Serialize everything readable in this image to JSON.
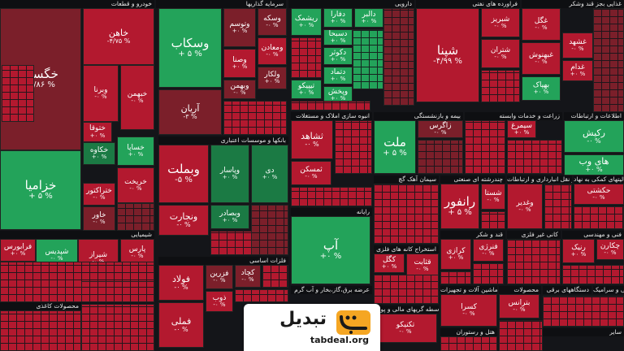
{
  "colors": {
    "green_dark": "#1b7a44",
    "green": "#23a35a",
    "green_light": "#2fbf6c",
    "red_dark": "#7b1f2a",
    "red": "#b3192f",
    "red_light": "#e02a3c",
    "grey": "#5a5a5a"
  },
  "sectors": [
    {
      "label": "خودرو و قطعات"
    },
    {
      "label": "سرمایه گذاریها"
    },
    {
      "label": "دارویی"
    },
    {
      "label": "فراورده های نفتی"
    },
    {
      "label": "غذایی بجز قند وشکر"
    },
    {
      "label": "بانکها و موسسات اعتباری"
    },
    {
      "label": "انبوه سازی املاک و مستغلات"
    },
    {
      "label": "بیمه و بازنشستگی"
    },
    {
      "label": "زراعت و خدمات وابسته"
    },
    {
      "label": "اطلاعات و ارتباطات"
    },
    {
      "label": "رایانه"
    },
    {
      "label": "سیمان آهک گچ"
    },
    {
      "label": "چندرشته ای صنعتی"
    },
    {
      "label": "حمل و نقل انبارداری و ارتباطات"
    },
    {
      "label": "فعالیتهای کمکی به نهاد"
    },
    {
      "label": "شیمیایی"
    },
    {
      "label": "فلزات اساسی"
    },
    {
      "label": "استخراج کانه های فلزی"
    },
    {
      "label": "قند و شکر"
    },
    {
      "label": "کانی غیر فلزی"
    },
    {
      "label": "فنی و مهندسی"
    },
    {
      "label": "محصولات کاغذی"
    },
    {
      "label": "عرضه برق،گاز،بخار و آب گرم"
    },
    {
      "label": "ماشین آلات و تجهیزات"
    },
    {
      "label": "محصولات"
    },
    {
      "label": "دستگاههای برقی"
    },
    {
      "label": "کاشی و سرامیک"
    },
    {
      "label": "واسطه گریهای مالی و پولی"
    },
    {
      "label": "هتل و رستوران"
    },
    {
      "label": "مخابراتی"
    },
    {
      "label": "سایر"
    }
  ],
  "tiles": [
    {
      "name": "خگستر",
      "pct": "-۳/۸۶ %"
    },
    {
      "name": "خزامیا",
      "pct": "+ ۵ %"
    },
    {
      "name": "خاهن",
      "pct": "-۴/۷۵ %"
    },
    {
      "name": "خکاوه",
      "pct": "+۰ %"
    },
    {
      "name": "ختوقا",
      "pct": "+۰ %"
    },
    {
      "name": "خساپا",
      "pct": "+۰ %"
    },
    {
      "name": "ختراکتور",
      "pct": "-۰ %"
    },
    {
      "name": "خبهمن",
      "pct": "-۰ %"
    },
    {
      "name": "وبرنا",
      "pct": "-۰ %"
    },
    {
      "name": "خاور",
      "pct": "-۰ %"
    },
    {
      "name": "خریخت",
      "pct": "-۰ %"
    },
    {
      "name": "وسکاب",
      "pct": "+ ۵ %"
    },
    {
      "name": "آریان",
      "pct": "-۳ %"
    },
    {
      "name": "وتوسم",
      "pct": "+۰ %"
    },
    {
      "name": "وصنا",
      "pct": "+۰ %"
    },
    {
      "name": "وسکه",
      "pct": "-۰ %"
    },
    {
      "name": "وبهمن",
      "pct": "-۰ %"
    },
    {
      "name": "ومعادن",
      "pct": "-۰ %"
    },
    {
      "name": "ولکار",
      "pct": "+۰ %"
    },
    {
      "name": "ریشمک",
      "pct": "+۰ %"
    },
    {
      "name": "دفارا",
      "pct": "+۰ %"
    },
    {
      "name": "دالبر",
      "pct": "+۰ %"
    },
    {
      "name": "دسبحا",
      "pct": "+۰ %"
    },
    {
      "name": "دکوثر",
      "pct": "+۰ %"
    },
    {
      "name": "دتماد",
      "pct": "+۰ %"
    },
    {
      "name": "تیپیکو",
      "pct": "+۰ %"
    },
    {
      "name": "وپخش",
      "pct": "+۰ %"
    },
    {
      "name": "شپنا",
      "pct": "-۴/۹۹ %"
    },
    {
      "name": "شبریز",
      "pct": "-۰ %"
    },
    {
      "name": "شتران",
      "pct": "-۰ %"
    },
    {
      "name": "غگل",
      "pct": "-۰ %"
    },
    {
      "name": "غشهد",
      "pct": "-۰ %"
    },
    {
      "name": "غبهنوش",
      "pct": "-۰ %"
    },
    {
      "name": "بهپاک",
      "pct": "+۰ %"
    },
    {
      "name": "غدام",
      "pct": "+۰ %"
    },
    {
      "name": "وبملت",
      "pct": "-۵ %"
    },
    {
      "name": "ونجارت",
      "pct": "-۰ %"
    },
    {
      "name": "وپاسار",
      "pct": "+۰ %"
    },
    {
      "name": "وبصادر",
      "pct": "+۰ %"
    },
    {
      "name": "دی",
      "pct": "+۰ %"
    },
    {
      "name": "ثشاهد",
      "pct": "-۰ %"
    },
    {
      "name": "ثمسکن",
      "pct": "-۰ %"
    },
    {
      "name": "ملت",
      "pct": "+ ۵ %"
    },
    {
      "name": "زاگرس",
      "pct": "-۰ %"
    },
    {
      "name": "سیمرغ",
      "pct": "+۰ %"
    },
    {
      "name": "رکیش",
      "pct": "-۰ %"
    },
    {
      "name": "های وب",
      "pct": "+۰ %"
    },
    {
      "name": "آپ",
      "pct": "+۰ %"
    },
    {
      "name": "رانفور",
      "pct": "+ ۵ %"
    },
    {
      "name": "شستا",
      "pct": "-۰ %"
    },
    {
      "name": "وغدیر",
      "pct": "-۰ %"
    },
    {
      "name": "حکشتی",
      "pct": "-۰ %"
    },
    {
      "name": "فرابورس",
      "pct": "+۰ %"
    },
    {
      "name": "شپدیس",
      "pct": "-۰ %"
    },
    {
      "name": "شیراز",
      "pct": "-۰ %"
    },
    {
      "name": "پارس",
      "pct": "-۰ %"
    },
    {
      "name": "فولاد",
      "pct": "-۰ %"
    },
    {
      "name": "فملی",
      "pct": "-۰ %"
    },
    {
      "name": "فزرین",
      "pct": "-۰ %"
    },
    {
      "name": "ذوب",
      "pct": "-۰ %"
    },
    {
      "name": "کچاد",
      "pct": "-۰ %"
    },
    {
      "name": "کگل",
      "pct": "+۰ %"
    },
    {
      "name": "قثابت",
      "pct": "-۰ %"
    },
    {
      "name": "کرازی",
      "pct": "+۰ %"
    },
    {
      "name": "فنرژی",
      "pct": "-۰ %"
    },
    {
      "name": "رنیک",
      "pct": "+۰ %"
    },
    {
      "name": "چکارن",
      "pct": "-۰ %"
    },
    {
      "name": "بترانس",
      "pct": "-۰ %"
    },
    {
      "name": "کسرا",
      "pct": "-۰ %"
    },
    {
      "name": "تکنیکو",
      "pct": "-۰ %"
    }
  ],
  "logo": {
    "brand": "تبدیل",
    "domain": "tabdeal.org"
  }
}
